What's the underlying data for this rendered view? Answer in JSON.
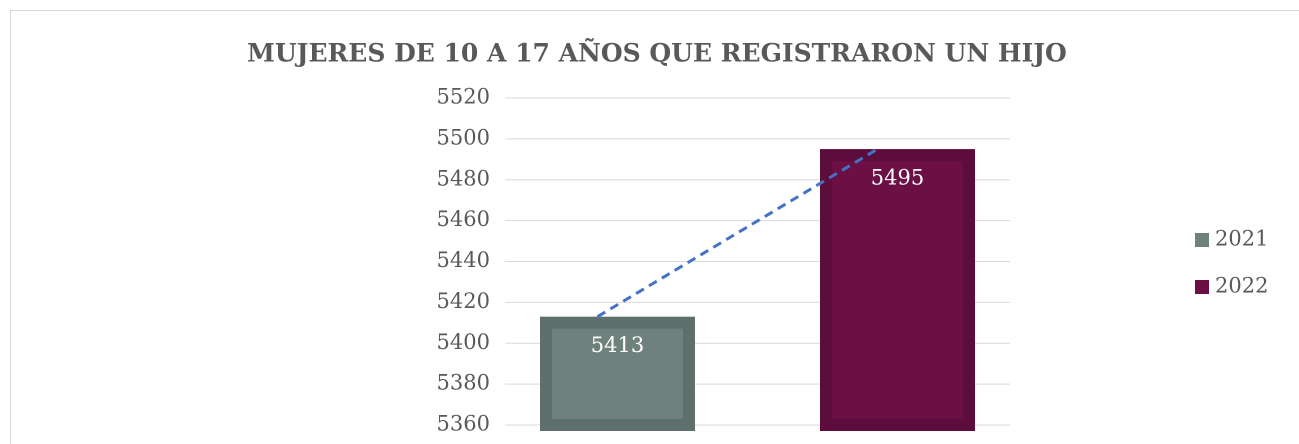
{
  "chart_data": {
    "type": "bar",
    "title": "MUJERES DE 10 A 17 AÑOS QUE REGISTRARON UN HIJO",
    "categories": [
      null
    ],
    "series": [
      {
        "name": "2021",
        "color": "#6f817d",
        "values": [
          5413
        ]
      },
      {
        "name": "2022",
        "color": "#6b0f45",
        "values": [
          5495
        ]
      }
    ],
    "ylim": [
      5360,
      5520
    ],
    "yticks": [
      5360,
      5380,
      5400,
      5420,
      5440,
      5460,
      5480,
      5500,
      5520
    ],
    "grid": true,
    "trendline": true,
    "legend": "right"
  }
}
